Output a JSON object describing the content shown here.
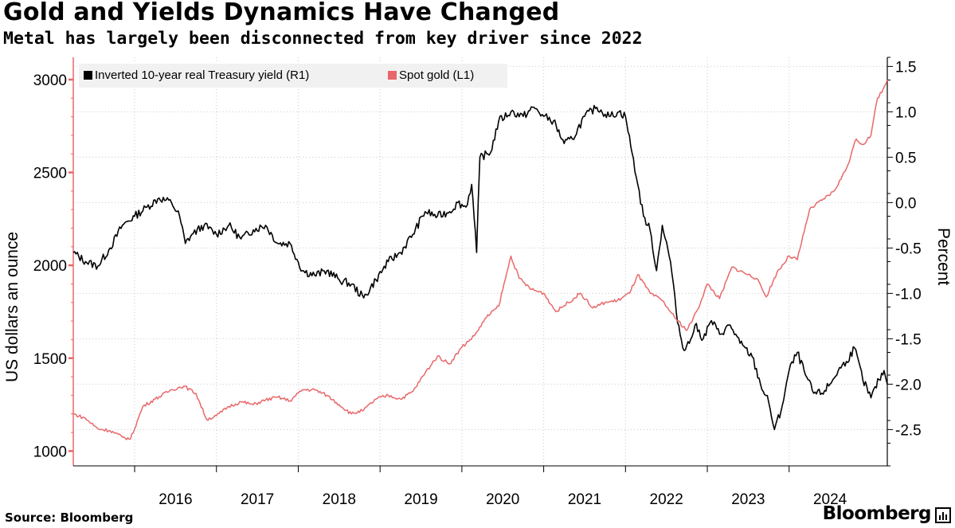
{
  "chart_data": {
    "type": "line",
    "title": "Gold and Yields Dynamics Have Changed",
    "subtitle": "Metal has largely been disconnected from key driver since 2022",
    "source": "Source: Bloomberg",
    "brand": "Bloomberg",
    "left_axis": {
      "label": "US dollars an ounce",
      "ticks": [
        1000,
        1500,
        2000,
        2500,
        3000
      ],
      "range": [
        920,
        3120
      ],
      "color": "#e8686a"
    },
    "right_axis": {
      "label": "Percent",
      "ticks": [
        "1.5",
        "1.0",
        "0.5",
        "0.0",
        "-0.5",
        "-1.0",
        "-1.5",
        "-2.0",
        "-2.5"
      ],
      "range": [
        -2.9,
        1.6
      ]
    },
    "x_axis": {
      "ticks": [
        "2016",
        "2017",
        "2018",
        "2019",
        "2020",
        "2021",
        "2022",
        "2023",
        "2024"
      ],
      "range": [
        2015.25,
        2025.2
      ]
    },
    "grid": true,
    "legend_position": "top-left",
    "series": [
      {
        "name": "Inverted 10-year real Treasury yield (R1)",
        "axis": "right",
        "color": "#000000",
        "points": [
          [
            2015.25,
            -0.55
          ],
          [
            2015.4,
            -0.65
          ],
          [
            2015.55,
            -0.7
          ],
          [
            2015.7,
            -0.5
          ],
          [
            2015.85,
            -0.25
          ],
          [
            2016.0,
            -0.15
          ],
          [
            2016.15,
            -0.05
          ],
          [
            2016.3,
            0.05
          ],
          [
            2016.45,
            0.0
          ],
          [
            2016.55,
            -0.15
          ],
          [
            2016.62,
            -0.45
          ],
          [
            2016.7,
            -0.35
          ],
          [
            2016.85,
            -0.25
          ],
          [
            2017.0,
            -0.35
          ],
          [
            2017.15,
            -0.25
          ],
          [
            2017.3,
            -0.4
          ],
          [
            2017.45,
            -0.3
          ],
          [
            2017.6,
            -0.25
          ],
          [
            2017.75,
            -0.45
          ],
          [
            2017.9,
            -0.45
          ],
          [
            2018.05,
            -0.75
          ],
          [
            2018.2,
            -0.8
          ],
          [
            2018.35,
            -0.75
          ],
          [
            2018.5,
            -0.85
          ],
          [
            2018.65,
            -0.9
          ],
          [
            2018.8,
            -1.05
          ],
          [
            2018.95,
            -0.85
          ],
          [
            2019.1,
            -0.65
          ],
          [
            2019.25,
            -0.55
          ],
          [
            2019.4,
            -0.35
          ],
          [
            2019.55,
            -0.1
          ],
          [
            2019.7,
            -0.15
          ],
          [
            2019.85,
            -0.1
          ],
          [
            2019.95,
            0.0
          ],
          [
            2020.05,
            -0.05
          ],
          [
            2020.12,
            0.2
          ],
          [
            2020.18,
            -0.55
          ],
          [
            2020.22,
            0.5
          ],
          [
            2020.35,
            0.55
          ],
          [
            2020.45,
            0.9
          ],
          [
            2020.6,
            1.0
          ],
          [
            2020.75,
            0.95
          ],
          [
            2020.88,
            1.05
          ],
          [
            2021.0,
            0.95
          ],
          [
            2021.12,
            0.9
          ],
          [
            2021.25,
            0.65
          ],
          [
            2021.35,
            0.7
          ],
          [
            2021.5,
            0.95
          ],
          [
            2021.65,
            1.05
          ],
          [
            2021.8,
            0.95
          ],
          [
            2021.92,
            1.0
          ],
          [
            2022.0,
            0.95
          ],
          [
            2022.08,
            0.55
          ],
          [
            2022.15,
            0.2
          ],
          [
            2022.22,
            -0.15
          ],
          [
            2022.3,
            -0.3
          ],
          [
            2022.38,
            -0.75
          ],
          [
            2022.45,
            -0.25
          ],
          [
            2022.55,
            -0.65
          ],
          [
            2022.62,
            -1.2
          ],
          [
            2022.7,
            -1.6
          ],
          [
            2022.78,
            -1.55
          ],
          [
            2022.85,
            -1.35
          ],
          [
            2022.95,
            -1.5
          ],
          [
            2023.05,
            -1.3
          ],
          [
            2023.15,
            -1.45
          ],
          [
            2023.28,
            -1.35
          ],
          [
            2023.4,
            -1.55
          ],
          [
            2023.55,
            -1.7
          ],
          [
            2023.65,
            -2.0
          ],
          [
            2023.75,
            -2.2
          ],
          [
            2023.82,
            -2.5
          ],
          [
            2023.9,
            -2.3
          ],
          [
            2024.0,
            -1.85
          ],
          [
            2024.1,
            -1.65
          ],
          [
            2024.2,
            -1.9
          ],
          [
            2024.3,
            -2.1
          ],
          [
            2024.4,
            -2.1
          ],
          [
            2024.5,
            -2.0
          ],
          [
            2024.6,
            -1.85
          ],
          [
            2024.7,
            -1.75
          ],
          [
            2024.8,
            -1.6
          ],
          [
            2024.9,
            -1.95
          ],
          [
            2025.0,
            -2.15
          ],
          [
            2025.1,
            -1.95
          ],
          [
            2025.16,
            -1.85
          ],
          [
            2025.2,
            -2.0
          ]
        ]
      },
      {
        "name": "Spot gold (L1)",
        "axis": "left",
        "color": "#e8686a",
        "points": [
          [
            2015.25,
            1200
          ],
          [
            2015.4,
            1175
          ],
          [
            2015.55,
            1120
          ],
          [
            2015.7,
            1110
          ],
          [
            2015.85,
            1075
          ],
          [
            2015.95,
            1065
          ],
          [
            2016.1,
            1240
          ],
          [
            2016.25,
            1280
          ],
          [
            2016.45,
            1330
          ],
          [
            2016.6,
            1350
          ],
          [
            2016.75,
            1310
          ],
          [
            2016.88,
            1170
          ],
          [
            2017.0,
            1190
          ],
          [
            2017.15,
            1240
          ],
          [
            2017.3,
            1265
          ],
          [
            2017.45,
            1250
          ],
          [
            2017.6,
            1275
          ],
          [
            2017.75,
            1290
          ],
          [
            2017.9,
            1270
          ],
          [
            2018.05,
            1330
          ],
          [
            2018.2,
            1330
          ],
          [
            2018.35,
            1300
          ],
          [
            2018.5,
            1250
          ],
          [
            2018.65,
            1200
          ],
          [
            2018.8,
            1220
          ],
          [
            2018.95,
            1280
          ],
          [
            2019.1,
            1300
          ],
          [
            2019.25,
            1280
          ],
          [
            2019.4,
            1320
          ],
          [
            2019.55,
            1420
          ],
          [
            2019.7,
            1510
          ],
          [
            2019.85,
            1470
          ],
          [
            2020.0,
            1560
          ],
          [
            2020.15,
            1620
          ],
          [
            2020.3,
            1720
          ],
          [
            2020.45,
            1780
          ],
          [
            2020.6,
            2050
          ],
          [
            2020.7,
            1930
          ],
          [
            2020.85,
            1870
          ],
          [
            2021.0,
            1850
          ],
          [
            2021.15,
            1750
          ],
          [
            2021.3,
            1800
          ],
          [
            2021.45,
            1850
          ],
          [
            2021.6,
            1770
          ],
          [
            2021.75,
            1800
          ],
          [
            2021.9,
            1810
          ],
          [
            2022.05,
            1850
          ],
          [
            2022.15,
            1950
          ],
          [
            2022.3,
            1850
          ],
          [
            2022.45,
            1810
          ],
          [
            2022.6,
            1720
          ],
          [
            2022.75,
            1650
          ],
          [
            2022.88,
            1760
          ],
          [
            2023.0,
            1900
          ],
          [
            2023.15,
            1820
          ],
          [
            2023.3,
            1990
          ],
          [
            2023.45,
            1960
          ],
          [
            2023.6,
            1930
          ],
          [
            2023.72,
            1830
          ],
          [
            2023.85,
            1960
          ],
          [
            2024.0,
            2050
          ],
          [
            2024.1,
            2030
          ],
          [
            2024.25,
            2300
          ],
          [
            2024.4,
            2350
          ],
          [
            2024.55,
            2400
          ],
          [
            2024.7,
            2520
          ],
          [
            2024.82,
            2680
          ],
          [
            2024.9,
            2650
          ],
          [
            2025.0,
            2700
          ],
          [
            2025.08,
            2900
          ],
          [
            2025.15,
            2950
          ],
          [
            2025.2,
            3000
          ]
        ]
      }
    ]
  }
}
